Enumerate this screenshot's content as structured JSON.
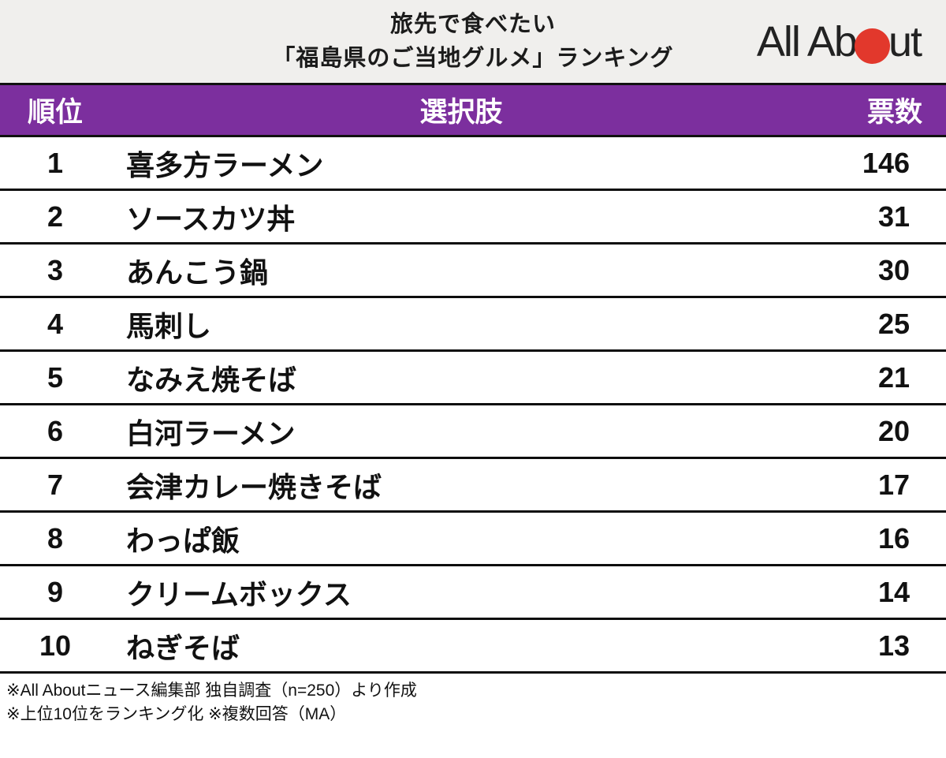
{
  "header": {
    "title_line1": "旅先で食べたい",
    "title_line2": "「福島県のご当地グルメ」ランキング",
    "logo": {
      "name": "All About",
      "text_before_dot": "All Ab",
      "text_after_dot": "ut"
    }
  },
  "colors": {
    "accent_purple": "#7c2f9e",
    "logo_red": "#e2382c",
    "band_gray": "#f0efed",
    "row_border": "#0d0d0d"
  },
  "table": {
    "columns": [
      "順位",
      "選択肢",
      "票数"
    ],
    "rows": [
      {
        "rank": "1",
        "label": "喜多方ラーメン",
        "votes": "146"
      },
      {
        "rank": "2",
        "label": "ソースカツ丼",
        "votes": "31"
      },
      {
        "rank": "3",
        "label": "あんこう鍋",
        "votes": "30"
      },
      {
        "rank": "4",
        "label": "馬刺し",
        "votes": "25"
      },
      {
        "rank": "5",
        "label": "なみえ焼そば",
        "votes": "21"
      },
      {
        "rank": "6",
        "label": "白河ラーメン",
        "votes": "20"
      },
      {
        "rank": "7",
        "label": "会津カレー焼きそば",
        "votes": "17"
      },
      {
        "rank": "8",
        "label": "わっぱ飯",
        "votes": "16"
      },
      {
        "rank": "9",
        "label": "クリームボックス",
        "votes": "14"
      },
      {
        "rank": "10",
        "label": "ねぎそば",
        "votes": "13"
      }
    ]
  },
  "footer": {
    "note1": "※All Aboutニュース編集部 独自調査（n=250）より作成",
    "note2": "※上位10位をランキング化 ※複数回答（MA）"
  },
  "chart_data": {
    "type": "table",
    "title": "旅先で食べたい「福島県のご当地グルメ」ランキング",
    "columns": [
      "順位",
      "選択肢",
      "票数"
    ],
    "categories": [
      "喜多方ラーメン",
      "ソースカツ丼",
      "あんこう鍋",
      "馬刺し",
      "なみえ焼そば",
      "白河ラーメン",
      "会津カレー焼きそば",
      "わっぱ飯",
      "クリームボックス",
      "ねぎそば"
    ],
    "values": [
      146,
      31,
      30,
      25,
      21,
      20,
      17,
      16,
      14,
      13
    ],
    "sample_size": "n=250",
    "notes": [
      "※All Aboutニュース編集部 独自調査（n=250）より作成",
      "※上位10位をランキング化 ※複数回答（MA）"
    ]
  }
}
